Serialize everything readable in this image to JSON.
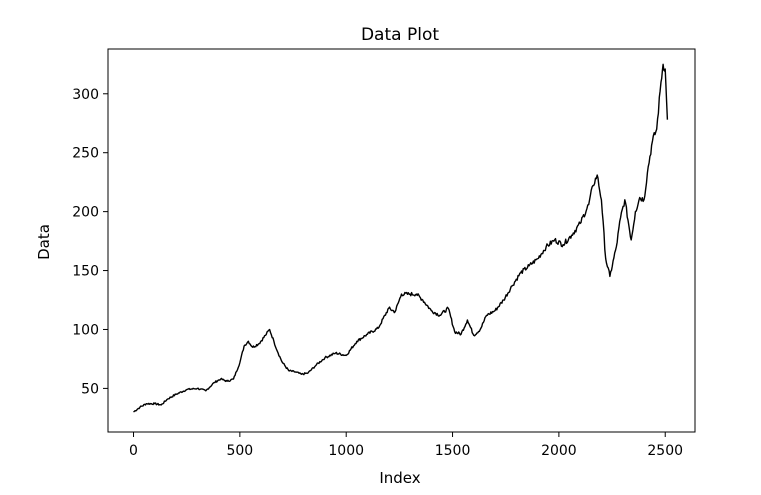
{
  "chart_data": {
    "type": "line",
    "title": "Data Plot",
    "xlabel": "Index",
    "ylabel": "Data",
    "xlim": [
      -120,
      2640
    ],
    "ylim": [
      13,
      338
    ],
    "grid": false,
    "x_ticks": [
      0,
      500,
      1000,
      1500,
      2000,
      2500
    ],
    "x_tick_labels": [
      "0",
      "500",
      "1000",
      "1500",
      "2000",
      "2500"
    ],
    "y_ticks": [
      50,
      100,
      150,
      200,
      250,
      300
    ],
    "y_tick_labels": [
      "50",
      "100",
      "150",
      "200",
      "250",
      "300"
    ],
    "line_color": "#000000",
    "series": [
      {
        "x": [
          0,
          30,
          60,
          100,
          130,
          160,
          200,
          250,
          300,
          340,
          380,
          410,
          440,
          470,
          500,
          520,
          540,
          560,
          590,
          620,
          640,
          660,
          680,
          700,
          730,
          760,
          790,
          820,
          860,
          900,
          950,
          1000,
          1050,
          1100,
          1150,
          1200,
          1230,
          1260,
          1300,
          1330,
          1360,
          1400,
          1440,
          1480,
          1510,
          1540,
          1570,
          1600,
          1630,
          1660,
          1700,
          1740,
          1780,
          1820,
          1860,
          1900,
          1940,
          1980,
          2020,
          2060,
          2100,
          2140,
          2160,
          2180,
          2200,
          2220,
          2240,
          2270,
          2290,
          2310,
          2340,
          2360,
          2380,
          2400,
          2420,
          2440,
          2460,
          2480,
          2490,
          2500,
          2510
        ],
        "values": [
          30,
          34,
          37,
          37,
          36,
          41,
          45,
          49,
          50,
          48,
          55,
          58,
          56,
          58,
          72,
          86,
          90,
          85,
          88,
          95,
          100,
          90,
          80,
          72,
          65,
          64,
          62,
          63,
          70,
          76,
          80,
          78,
          90,
          96,
          101,
          118,
          115,
          130,
          130,
          130,
          125,
          116,
          112,
          118,
          98,
          96,
          108,
          95,
          100,
          112,
          116,
          125,
          137,
          148,
          154,
          160,
          170,
          176,
          172,
          180,
          190,
          206,
          222,
          231,
          210,
          160,
          145,
          170,
          195,
          210,
          176,
          200,
          212,
          210,
          238,
          260,
          270,
          310,
          325,
          321,
          278
        ]
      }
    ]
  }
}
